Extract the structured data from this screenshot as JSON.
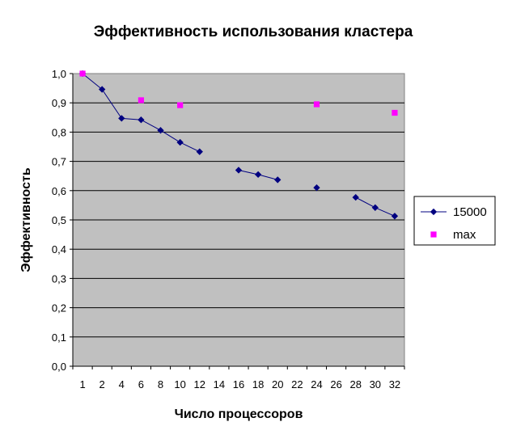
{
  "chart_data": {
    "type": "line",
    "title": "Эффективность использования кластера",
    "xlabel": "Число процессоров",
    "ylabel": "Эффективность",
    "categories": [
      "1",
      "2",
      "4",
      "6",
      "8",
      "10",
      "12",
      "14",
      "16",
      "18",
      "20",
      "22",
      "24",
      "26",
      "28",
      "30",
      "32"
    ],
    "ylim": [
      0,
      1.0
    ],
    "y_ticks": [
      "0,0",
      "0,1",
      "0,2",
      "0,3",
      "0,4",
      "0,5",
      "0,6",
      "0,7",
      "0,8",
      "0,9",
      "1,0"
    ],
    "grid": true,
    "legend_position": "right",
    "series": [
      {
        "name": "15000",
        "color": "#000080",
        "marker": "diamond",
        "values": [
          1.0,
          0.946,
          0.847,
          0.842,
          0.806,
          0.765,
          0.733,
          null,
          0.67,
          0.655,
          0.637,
          null,
          0.61,
          null,
          0.577,
          0.542,
          0.513
        ]
      },
      {
        "name": "max",
        "color": "#ff00ff",
        "marker": "square",
        "values": [
          1.0,
          null,
          null,
          0.909,
          null,
          0.892,
          null,
          null,
          null,
          null,
          null,
          null,
          0.895,
          null,
          null,
          null,
          0.866
        ]
      }
    ]
  }
}
